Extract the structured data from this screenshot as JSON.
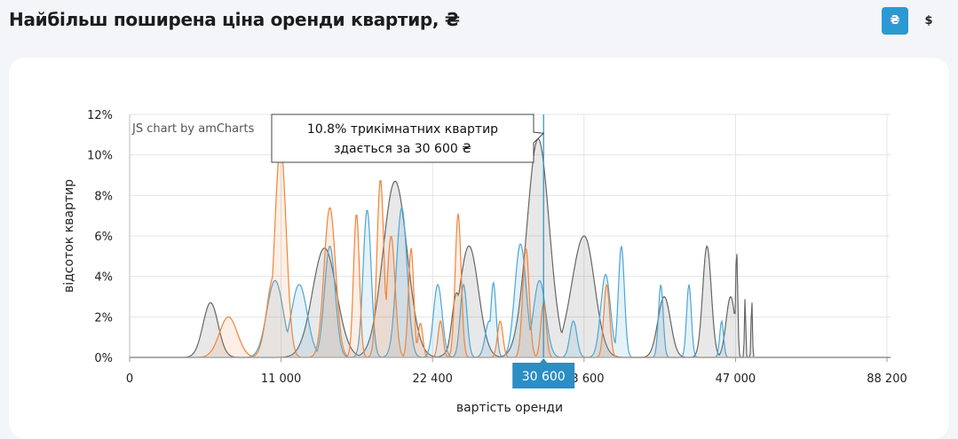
{
  "title": "Найбільш поширена ціна оренди квартир, ₴",
  "currency_buttons": [
    {
      "label": "₴",
      "active": true
    },
    {
      "label": "$",
      "active": false
    }
  ],
  "credit": "JS chart by amCharts",
  "tooltip": {
    "line1": "10.8% трикімнатних квартир",
    "line2": "здається за 30 600 ₴"
  },
  "cursor_value_label": "30 600",
  "colors": {
    "series_orange": "#f0853a",
    "series_blue": "#4fa6d4",
    "series_gray": "#666666",
    "cursor": "#2b8ec4",
    "accent": "#2b9ad3"
  },
  "chart_data": {
    "type": "area",
    "xlabel": "вартість оренди",
    "ylabel": "відсоток квартир",
    "ylim": [
      0,
      12
    ],
    "y_ticks": [
      "0%",
      "2%",
      "4%",
      "6%",
      "8%",
      "10%",
      "12%"
    ],
    "x_tick_labels": [
      "0",
      "11 000",
      "22 400",
      "33 600",
      "47 000",
      "88 200"
    ],
    "grid": true,
    "cursor": {
      "x": 30600,
      "y": 10.8
    },
    "series": [
      {
        "color_key": "series_orange",
        "peaks": [
          [
            7200,
            2.0,
            650
          ],
          [
            10500,
            4.0,
            500
          ],
          [
            11000,
            10.5,
            420
          ],
          [
            14700,
            7.4,
            430
          ],
          [
            16700,
            7.1,
            220
          ],
          [
            18500,
            8.8,
            260
          ],
          [
            19300,
            6.0,
            300
          ],
          [
            20800,
            5.4,
            200
          ],
          [
            21500,
            1.7,
            180
          ],
          [
            23000,
            1.8,
            180
          ],
          [
            24300,
            7.1,
            220
          ],
          [
            27400,
            1.8,
            200
          ],
          [
            29300,
            5.4,
            240
          ],
          [
            30600,
            2.7,
            200
          ],
          [
            35600,
            3.6,
            260
          ]
        ]
      },
      {
        "color_key": "series_blue",
        "peaks": [
          [
            10600,
            3.8,
            600
          ],
          [
            12400,
            3.6,
            600
          ],
          [
            14700,
            5.5,
            400
          ],
          [
            17500,
            7.3,
            300
          ],
          [
            20100,
            7.4,
            400
          ],
          [
            22800,
            3.6,
            320
          ],
          [
            24700,
            3.6,
            250
          ],
          [
            26600,
            1.8,
            300
          ],
          [
            26900,
            3.7,
            200
          ],
          [
            28900,
            5.6,
            420
          ],
          [
            30300,
            3.8,
            450
          ],
          [
            32800,
            1.8,
            260
          ],
          [
            35500,
            4.1,
            430
          ],
          [
            36900,
            5.5,
            270
          ],
          [
            40400,
            3.6,
            210
          ],
          [
            42900,
            3.6,
            210
          ],
          [
            45800,
            1.8,
            170
          ]
        ]
      },
      {
        "color_key": "series_gray",
        "peaks": [
          [
            5900,
            2.7,
            550
          ],
          [
            14300,
            5.4,
            900
          ],
          [
            19600,
            8.7,
            900
          ],
          [
            24200,
            3.2,
            350
          ],
          [
            25100,
            5.5,
            700
          ],
          [
            30200,
            10.8,
            820
          ],
          [
            33600,
            6.0,
            920
          ],
          [
            40700,
            3.0,
            560
          ],
          [
            44500,
            5.5,
            380
          ],
          [
            46600,
            3.0,
            400
          ],
          [
            47400,
            5.3,
            300
          ],
          [
            49700,
            3.0,
            170
          ],
          [
            51500,
            3.0,
            170
          ]
        ]
      }
    ]
  }
}
